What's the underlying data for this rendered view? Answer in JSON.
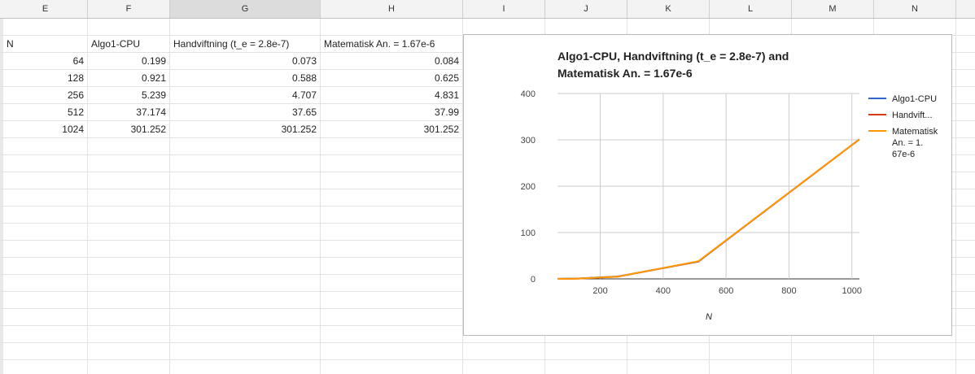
{
  "columns": [
    "E",
    "F",
    "G",
    "H",
    "I",
    "J",
    "K",
    "L",
    "M",
    "N"
  ],
  "table": {
    "headers": [
      "N",
      "Algo1-CPU",
      "Handviftning (t_e = 2.8e-7)",
      "Matematisk An. = 1.67e-6"
    ],
    "rows": [
      [
        "64",
        "0.199",
        "0.073",
        "0.084"
      ],
      [
        "128",
        "0.921",
        "0.588",
        "0.625"
      ],
      [
        "256",
        "5.239",
        "4.707",
        "4.831"
      ],
      [
        "512",
        "37.174",
        "37.65",
        "37.99"
      ],
      [
        "1024",
        "301.252",
        "301.252",
        "301.252"
      ]
    ]
  },
  "chart_data": {
    "type": "line",
    "title_lines": [
      "Algo1-CPU, Handviftning (t_e = 2.8e-7) and",
      "Matematisk An. = 1.67e-6"
    ],
    "xlabel": "N",
    "ylabel": "",
    "x": [
      64,
      128,
      256,
      512,
      1024
    ],
    "series": [
      {
        "name": "Algo1-CPU",
        "color": "#3366cc",
        "values": [
          0.199,
          0.921,
          5.239,
          37.174,
          301.252
        ]
      },
      {
        "name": "Handvift...",
        "color": "#dc3912",
        "values": [
          0.073,
          0.588,
          4.707,
          37.65,
          301.252
        ]
      },
      {
        "name": "Matematisk An. = 1.67e-6",
        "color": "#ff9900",
        "values": [
          0.084,
          0.625,
          4.831,
          37.99,
          301.252
        ]
      }
    ],
    "legend_lines": [
      [
        "Algo1-CPU"
      ],
      [
        "Handvift..."
      ],
      [
        "Matematisk",
        "An. = 1.",
        "67e-6"
      ]
    ],
    "xticks": [
      200,
      400,
      600,
      800,
      1000
    ],
    "yticks": [
      0,
      100,
      200,
      300,
      400
    ],
    "xlim": [
      64,
      1024
    ],
    "ylim": [
      0,
      400
    ],
    "grid": true,
    "legend_position": "right"
  }
}
